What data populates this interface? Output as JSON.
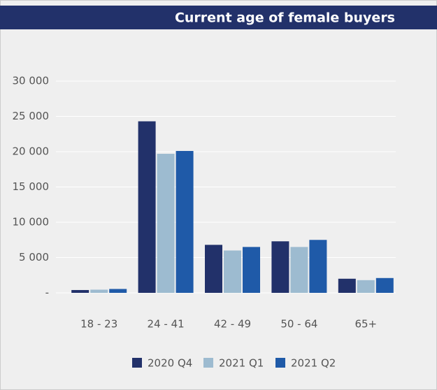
{
  "chart_data": {
    "type": "bar",
    "title": "Current age of female buyers",
    "categories": [
      "18 - 23",
      "24 - 41",
      "42 - 49",
      "50 - 64",
      "65+"
    ],
    "series": [
      {
        "name": "2020 Q4",
        "color": "#22316a",
        "values": [
          400,
          24300,
          6800,
          7300,
          2000
        ]
      },
      {
        "name": "2021 Q1",
        "color": "#9dbbd0",
        "values": [
          450,
          19700,
          6000,
          6500,
          1800
        ]
      },
      {
        "name": "2021 Q2",
        "color": "#1f5aa8",
        "values": [
          550,
          20100,
          6500,
          7500,
          2100
        ]
      }
    ],
    "ylim": [
      0,
      30000
    ],
    "yticks": [
      {
        "value": 0,
        "label": "-"
      },
      {
        "value": 5000,
        "label": "5 000"
      },
      {
        "value": 10000,
        "label": "10 000"
      },
      {
        "value": 15000,
        "label": "15 000"
      },
      {
        "value": 20000,
        "label": "20 000"
      },
      {
        "value": 25000,
        "label": "25 000"
      },
      {
        "value": 30000,
        "label": "30 000"
      }
    ],
    "grid": true
  }
}
